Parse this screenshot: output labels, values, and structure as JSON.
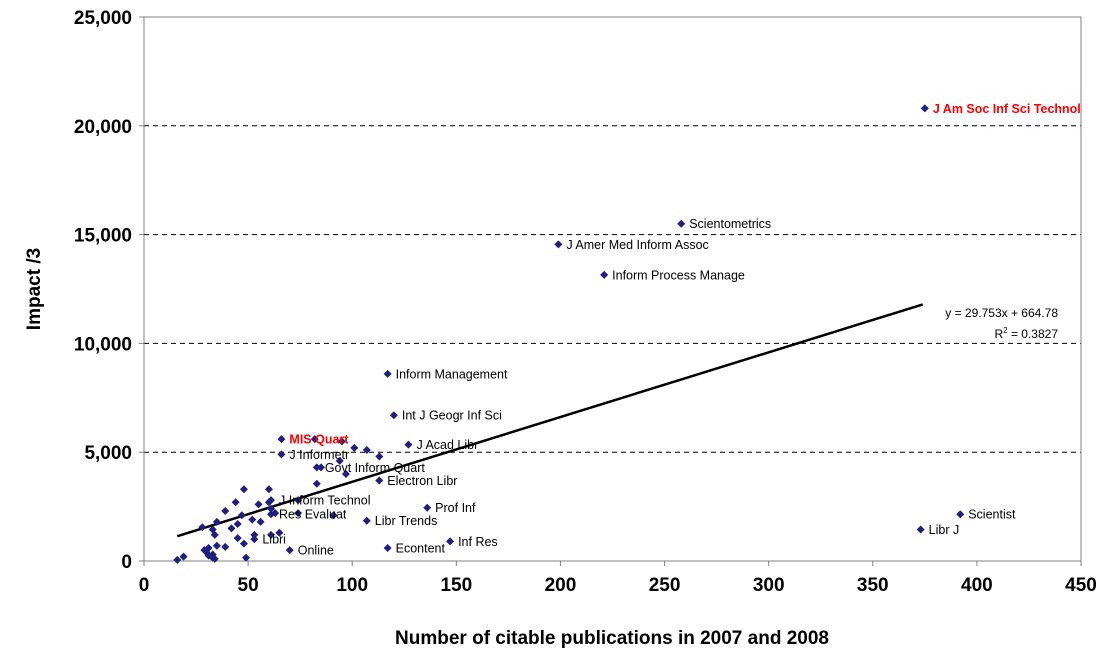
{
  "chart_data": {
    "type": "scatter",
    "xlabel": "Number of citable publications in 2007 and 2008",
    "ylabel": "Impact /3",
    "xlim": [
      0,
      450
    ],
    "ylim": [
      0,
      25000
    ],
    "x_ticks": [
      {
        "value": 0,
        "label": "0"
      },
      {
        "value": 50,
        "label": "50"
      },
      {
        "value": 100,
        "label": "100"
      },
      {
        "value": 150,
        "label": "150"
      },
      {
        "value": 200,
        "label": "200"
      },
      {
        "value": 250,
        "label": "250"
      },
      {
        "value": 300,
        "label": "300"
      },
      {
        "value": 350,
        "label": "350"
      },
      {
        "value": 400,
        "label": "400"
      },
      {
        "value": 450,
        "label": "450"
      }
    ],
    "y_ticks": [
      {
        "value": 0,
        "label": "0"
      },
      {
        "value": 5000,
        "label": "5,000"
      },
      {
        "value": 10000,
        "label": "10,000"
      },
      {
        "value": 15000,
        "label": "15,000"
      },
      {
        "value": 20000,
        "label": "20,000"
      },
      {
        "value": 25000,
        "label": "25,000"
      }
    ],
    "grid": {
      "horizontal": "dashed",
      "vertical": false
    },
    "marker_color": "#1f1f7f",
    "highlight_color": "#ff0000",
    "trendline": {
      "slope": 29.753,
      "intercept": 664.78,
      "x_range": [
        16,
        374
      ],
      "equation": "y = 29.753x + 664.78",
      "r2_prefix": "R",
      "r2_sup": "2",
      "r2_value": " = 0.3827"
    },
    "points": [
      {
        "x": 375,
        "y": 20800,
        "label": "J Am Soc Inf Sci Technol",
        "highlight": true
      },
      {
        "x": 258,
        "y": 15500,
        "label": "Scientometrics"
      },
      {
        "x": 199,
        "y": 14550,
        "label": "J Amer Med Inform Assoc"
      },
      {
        "x": 221,
        "y": 13150,
        "label": "Inform Process Manage"
      },
      {
        "x": 117,
        "y": 8600,
        "label": "Inform Management"
      },
      {
        "x": 120,
        "y": 6700,
        "label": "Int J Geogr Inf Sci"
      },
      {
        "x": 127,
        "y": 5350,
        "label": "J Acad Libr"
      },
      {
        "x": 66,
        "y": 5600,
        "label": "MIS Quart",
        "highlight": true
      },
      {
        "x": 66,
        "y": 4900,
        "label": "J Informetr"
      },
      {
        "x": 83,
        "y": 4300,
        "label": "Govt Inform Quart"
      },
      {
        "x": 113,
        "y": 3700,
        "label": "Electron Libr"
      },
      {
        "x": 61,
        "y": 2800,
        "label": "J Inform Technol"
      },
      {
        "x": 136,
        "y": 2450,
        "label": "Prof Inf"
      },
      {
        "x": 61,
        "y": 2150,
        "label": "Res Evaluat"
      },
      {
        "x": 107,
        "y": 1850,
        "label": "Libr Trends"
      },
      {
        "x": 147,
        "y": 900,
        "label": "Inf Res"
      },
      {
        "x": 53,
        "y": 1000,
        "label": "Libri"
      },
      {
        "x": 117,
        "y": 600,
        "label": "Econtent"
      },
      {
        "x": 70,
        "y": 500,
        "label": "Online"
      },
      {
        "x": 392,
        "y": 2150,
        "label": "Scientist"
      },
      {
        "x": 373,
        "y": 1450,
        "label": "Libr J"
      },
      {
        "x": 82,
        "y": 5600
      },
      {
        "x": 95,
        "y": 5500
      },
      {
        "x": 101,
        "y": 5200
      },
      {
        "x": 107,
        "y": 5100
      },
      {
        "x": 113,
        "y": 4800
      },
      {
        "x": 94,
        "y": 4600
      },
      {
        "x": 85,
        "y": 4300
      },
      {
        "x": 97,
        "y": 4000
      },
      {
        "x": 83,
        "y": 3550
      },
      {
        "x": 60,
        "y": 3300
      },
      {
        "x": 48,
        "y": 3300
      },
      {
        "x": 44,
        "y": 2700
      },
      {
        "x": 39,
        "y": 2300
      },
      {
        "x": 55,
        "y": 2600
      },
      {
        "x": 60,
        "y": 2700
      },
      {
        "x": 61,
        "y": 2400
      },
      {
        "x": 63,
        "y": 2200
      },
      {
        "x": 74,
        "y": 2800
      },
      {
        "x": 74,
        "y": 2200
      },
      {
        "x": 91,
        "y": 2100
      },
      {
        "x": 47,
        "y": 2100
      },
      {
        "x": 52,
        "y": 1900
      },
      {
        "x": 56,
        "y": 1800
      },
      {
        "x": 45,
        "y": 1700
      },
      {
        "x": 42,
        "y": 1500
      },
      {
        "x": 35,
        "y": 1800
      },
      {
        "x": 28,
        "y": 1550
      },
      {
        "x": 33,
        "y": 1450
      },
      {
        "x": 34,
        "y": 1200
      },
      {
        "x": 45,
        "y": 1050
      },
      {
        "x": 53,
        "y": 1200
      },
      {
        "x": 61,
        "y": 1200
      },
      {
        "x": 65,
        "y": 1300
      },
      {
        "x": 48,
        "y": 800
      },
      {
        "x": 39,
        "y": 650
      },
      {
        "x": 35,
        "y": 700
      },
      {
        "x": 31,
        "y": 600
      },
      {
        "x": 29,
        "y": 500
      },
      {
        "x": 33,
        "y": 300
      },
      {
        "x": 31,
        "y": 250
      },
      {
        "x": 30,
        "y": 400
      },
      {
        "x": 33,
        "y": 150
      },
      {
        "x": 34,
        "y": 100
      },
      {
        "x": 19,
        "y": 200
      },
      {
        "x": 16,
        "y": 50
      },
      {
        "x": 49,
        "y": 150
      }
    ]
  }
}
